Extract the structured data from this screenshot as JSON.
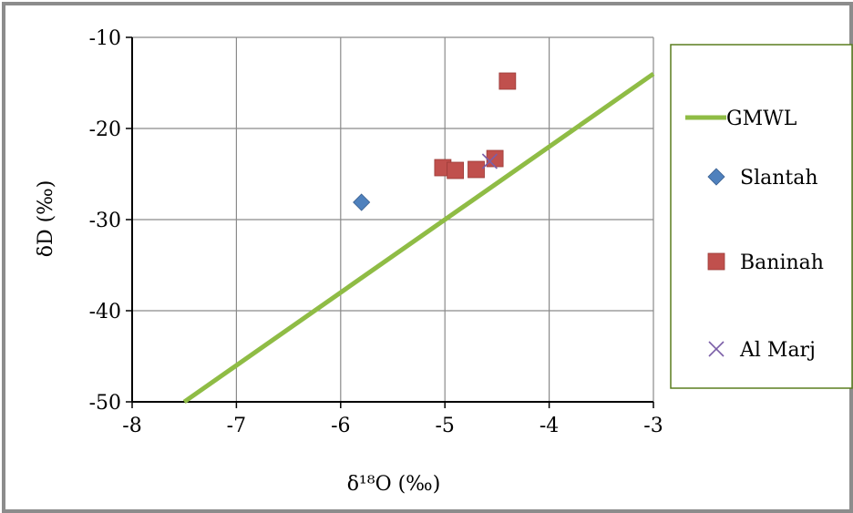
{
  "chart_data": {
    "type": "scatter",
    "xlabel": "δ¹⁸O (‰)",
    "ylabel": "δD (‰)",
    "xlim": [
      -8,
      -3
    ],
    "ylim": [
      -50,
      -10
    ],
    "x_ticks": [
      "-8",
      "-7",
      "-6",
      "-5",
      "-4",
      "-3"
    ],
    "y_ticks": [
      "-10",
      "-20",
      "-30",
      "-40",
      "-50"
    ],
    "grid": true,
    "legend_position": "right",
    "series": [
      {
        "name": "GMWL",
        "kind": "line",
        "color": "#8fbc45",
        "points": [
          [
            -7.5,
            -50
          ],
          [
            -3,
            -14
          ]
        ]
      },
      {
        "name": "Slantah",
        "kind": "scatter",
        "marker": "diamond",
        "color": "#4f81bd",
        "points": [
          [
            -5.8,
            -28.1
          ]
        ]
      },
      {
        "name": "Baninah",
        "kind": "scatter",
        "marker": "square",
        "color": "#c0504d",
        "points": [
          [
            -5.02,
            -24.3
          ],
          [
            -4.9,
            -24.6
          ],
          [
            -4.7,
            -24.5
          ],
          [
            -4.52,
            -23.3
          ],
          [
            -4.4,
            -14.8
          ]
        ]
      },
      {
        "name": "Al Marj",
        "kind": "scatter",
        "marker": "x",
        "color": "#7b5ea7",
        "points": [
          [
            -4.57,
            -23.6
          ]
        ]
      }
    ]
  }
}
